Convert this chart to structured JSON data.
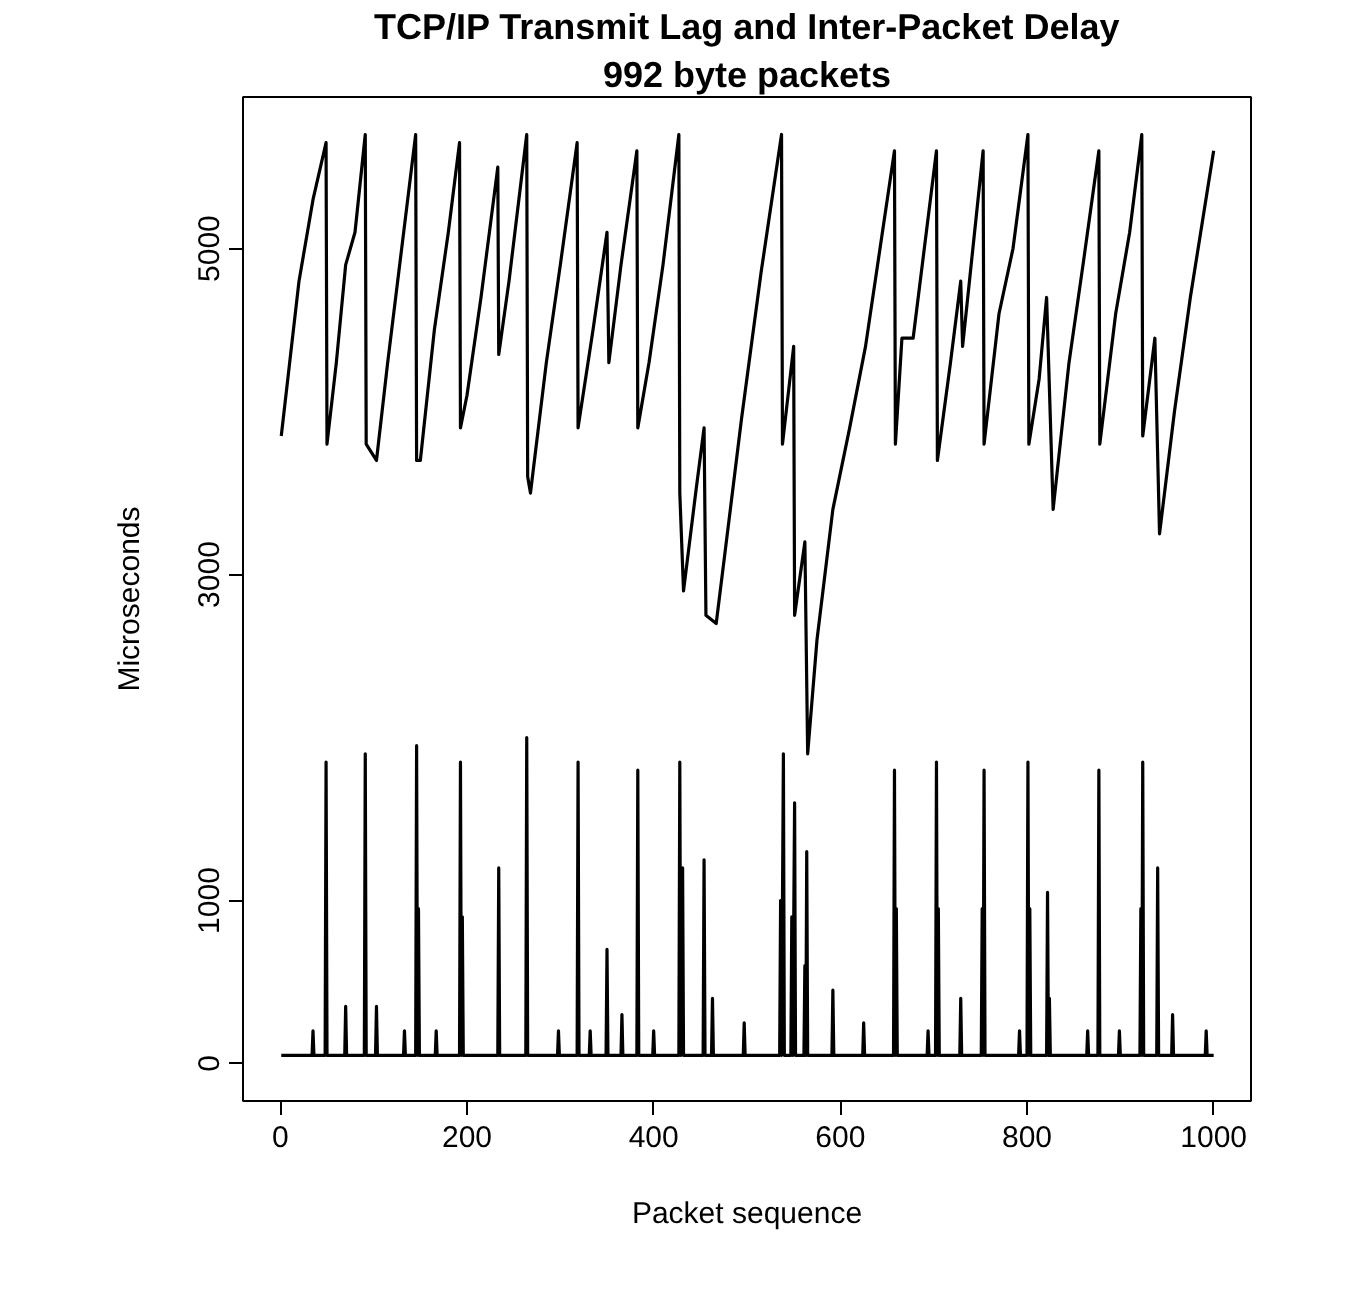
{
  "chart_data": {
    "type": "line",
    "title": "TCP/IP Transmit Lag and Inter-Packet Delay",
    "subtitle": "992 byte packets",
    "xlabel": "Packet sequence",
    "ylabel": "Microseconds",
    "xlim": [
      -40,
      1040
    ],
    "ylim": [
      -230,
      5930
    ],
    "xticks": [
      0,
      200,
      400,
      600,
      800,
      1000
    ],
    "yticks": [
      0,
      1000,
      3000,
      5000
    ],
    "grid": false,
    "marker": "none",
    "line_style": "solid",
    "series": [
      {
        "color": "#000000",
        "x": [
          1,
          10,
          20,
          35,
          49,
          50,
          60,
          70,
          80,
          91,
          92,
          103,
          115,
          130,
          145,
          146,
          150,
          165,
          180,
          192,
          193,
          200,
          215,
          233,
          234,
          245,
          264,
          265,
          268,
          285,
          300,
          318,
          319,
          335,
          350,
          352,
          365,
          382,
          383,
          395,
          410,
          427,
          428,
          432,
          445,
          454,
          456,
          467,
          480,
          494,
          515,
          537,
          538,
          550,
          551,
          562,
          565,
          575,
          592,
          610,
          627,
          658,
          659,
          666,
          678,
          703,
          704,
          718,
          729,
          731,
          753,
          754,
          770,
          785,
          801,
          802,
          813,
          821,
          828,
          845,
          860,
          877,
          878,
          895,
          910,
          923,
          924,
          937,
          942,
          958,
          975,
          1000
        ],
        "values": [
          3850,
          4300,
          4800,
          5300,
          5650,
          3800,
          4300,
          4900,
          5100,
          5700,
          3800,
          3700,
          4300,
          5000,
          5700,
          3700,
          3700,
          4500,
          5100,
          5650,
          3900,
          4100,
          4700,
          5500,
          4350,
          4800,
          5700,
          3600,
          3500,
          4300,
          4900,
          5650,
          3900,
          4500,
          5100,
          4300,
          4900,
          5600,
          3900,
          4300,
          4900,
          5700,
          3500,
          2900,
          3500,
          3900,
          2750,
          2700,
          3300,
          3950,
          4850,
          5700,
          3800,
          4400,
          2750,
          3200,
          1900,
          2600,
          3400,
          3900,
          4400,
          5600,
          3800,
          4450,
          4450,
          5600,
          3700,
          4300,
          4800,
          4400,
          5600,
          3800,
          4600,
          5000,
          5700,
          3800,
          4200,
          4700,
          3400,
          4300,
          4900,
          5600,
          3800,
          4600,
          5100,
          5700,
          3850,
          4450,
          3250,
          4000,
          4700,
          5600
        ]
      },
      {
        "color": "#000000",
        "x": [
          1,
          34,
          35,
          36,
          48,
          49,
          50,
          69,
          70,
          71,
          90,
          91,
          92,
          102,
          103,
          104,
          132,
          133,
          134,
          145,
          146,
          147,
          148,
          149,
          166,
          167,
          168,
          192,
          193,
          194,
          195,
          196,
          233,
          234,
          235,
          263,
          264,
          265,
          297,
          298,
          299,
          318,
          319,
          320,
          331,
          332,
          333,
          349,
          350,
          351,
          365,
          366,
          367,
          382,
          383,
          384,
          399,
          400,
          401,
          427,
          428,
          429,
          431,
          432,
          453,
          454,
          455,
          462,
          463,
          464,
          496,
          497,
          498,
          535,
          536,
          537,
          539,
          540,
          547,
          548,
          549,
          551,
          552,
          561,
          562,
          563,
          564,
          565,
          591,
          592,
          593,
          624,
          625,
          626,
          657,
          658,
          659,
          660,
          661,
          693,
          694,
          695,
          702,
          703,
          704,
          705,
          706,
          728,
          729,
          730,
          751,
          752,
          753,
          754,
          755,
          791,
          792,
          793,
          800,
          801,
          802,
          803,
          804,
          821,
          822,
          823,
          824,
          825,
          864,
          865,
          866,
          876,
          877,
          878,
          898,
          899,
          900,
          921,
          922,
          923,
          924,
          925,
          939,
          940,
          941,
          955,
          956,
          957,
          991,
          992,
          993,
          1000
        ],
        "values": [
          50,
          50,
          200,
          50,
          50,
          1850,
          50,
          50,
          350,
          50,
          50,
          1900,
          50,
          50,
          350,
          50,
          50,
          200,
          50,
          50,
          1950,
          50,
          950,
          50,
          50,
          200,
          50,
          50,
          1850,
          50,
          900,
          50,
          50,
          1200,
          50,
          50,
          2000,
          50,
          50,
          200,
          50,
          50,
          1850,
          50,
          50,
          200,
          50,
          50,
          700,
          50,
          50,
          300,
          50,
          50,
          1800,
          50,
          50,
          200,
          50,
          50,
          1850,
          50,
          1200,
          50,
          50,
          1250,
          50,
          50,
          400,
          50,
          50,
          250,
          50,
          50,
          1000,
          50,
          1900,
          50,
          50,
          900,
          50,
          1600,
          50,
          50,
          600,
          50,
          1300,
          50,
          50,
          450,
          50,
          50,
          250,
          50,
          50,
          1800,
          50,
          950,
          50,
          50,
          200,
          50,
          50,
          1850,
          50,
          950,
          50,
          50,
          400,
          50,
          50,
          950,
          50,
          1800,
          50,
          50,
          200,
          50,
          50,
          1850,
          50,
          950,
          50,
          50,
          1050,
          50,
          400,
          50,
          50,
          200,
          50,
          50,
          1800,
          50,
          50,
          200,
          50,
          50,
          950,
          50,
          1850,
          50,
          50,
          1200,
          50,
          50,
          300,
          50,
          50,
          200,
          50,
          50
        ]
      }
    ]
  }
}
